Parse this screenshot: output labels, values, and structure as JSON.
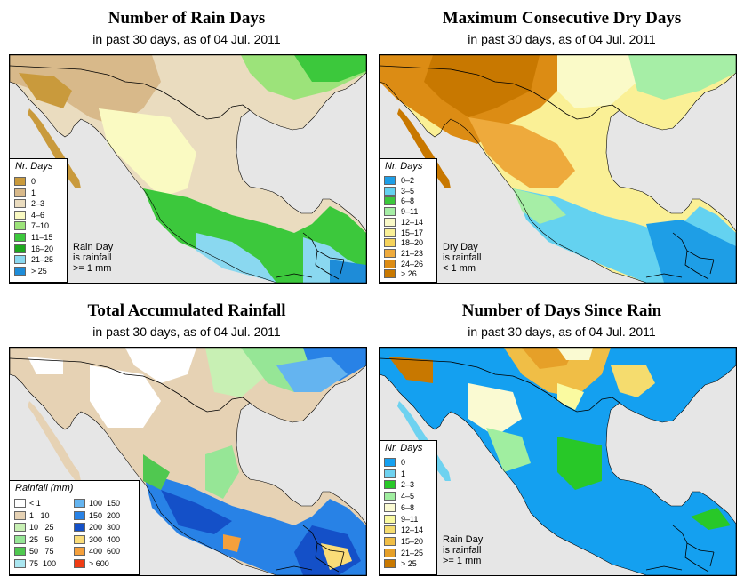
{
  "panels": [
    {
      "id": "rain-days",
      "title": "Number of Rain Days",
      "subtitle": "in past 30 days, as of  04 Jul. 2011",
      "legend": {
        "title": "Nr. Days",
        "items": [
          {
            "label": "0",
            "color": "#c99a3c"
          },
          {
            "label": "1",
            "color": "#d8b98a"
          },
          {
            "label": "2–3",
            "color": "#eadcbf"
          },
          {
            "label": "4–6",
            "color": "#fafac2"
          },
          {
            "label": "7–10",
            "color": "#9ce37a"
          },
          {
            "label": "11–15",
            "color": "#3cc83c"
          },
          {
            "label": "16–20",
            "color": "#1ea81e"
          },
          {
            "label": "21–25",
            "color": "#8ad8f0"
          },
          {
            "label": "> 25",
            "color": "#1e8cd8"
          }
        ]
      },
      "note": [
        "Rain Day",
        "is rainfall",
        ">= 1 mm"
      ]
    },
    {
      "id": "max-dry-days",
      "title": "Maximum Consecutive Dry Days",
      "subtitle": "in past 30 days, as of  04 Jul. 2011",
      "legend": {
        "title": "Nr. Days",
        "items": [
          {
            "label": "0–2",
            "color": "#1e9ee6"
          },
          {
            "label": "3–5",
            "color": "#64d2f0"
          },
          {
            "label": "6–8",
            "color": "#3cc83c"
          },
          {
            "label": "9–11",
            "color": "#a6eea6"
          },
          {
            "label": "12–14",
            "color": "#fafac8"
          },
          {
            "label": "15–17",
            "color": "#faf096"
          },
          {
            "label": "18–20",
            "color": "#f5d25a"
          },
          {
            "label": "21–23",
            "color": "#eeaa3c"
          },
          {
            "label": "24–26",
            "color": "#dc8c14"
          },
          {
            "label": "> 26",
            "color": "#c87800"
          }
        ]
      },
      "note": [
        "Dry Day",
        "is rainfall",
        "< 1 mm"
      ]
    },
    {
      "id": "total-rainfall",
      "title": "Total Accumulated Rainfall",
      "subtitle": "in past 30 days, as of  04 Jul. 2011",
      "legend": {
        "title": "Rainfall (mm)",
        "left_items": [
          {
            "label": "< 1",
            "color": "#ffffff"
          },
          {
            "label": "1   10",
            "color": "#e6d2b4"
          },
          {
            "label": "10   25",
            "color": "#c8f0b4"
          },
          {
            "label": "25   50",
            "color": "#96e696"
          },
          {
            "label": "50   75",
            "color": "#50c850"
          },
          {
            "label": "75  100",
            "color": "#aae6f0"
          }
        ],
        "right_items": [
          {
            "label": "100  150",
            "color": "#64b4f0"
          },
          {
            "label": "150  200",
            "color": "#2882e6"
          },
          {
            "label": "200  300",
            "color": "#1450c8"
          },
          {
            "label": "300  400",
            "color": "#fadc78"
          },
          {
            "label": "400  600",
            "color": "#f5a03c"
          },
          {
            "label": "> 600",
            "color": "#f03c14"
          }
        ]
      }
    },
    {
      "id": "days-since-rain",
      "title": "Number of Days Since Rain",
      "subtitle": "in past 30 days, as of  04 Jul. 2011",
      "legend": {
        "title": "Nr. Days",
        "items": [
          {
            "label": "0",
            "color": "#14a0f0"
          },
          {
            "label": "1",
            "color": "#6ed2f0"
          },
          {
            "label": "2–3",
            "color": "#28c828"
          },
          {
            "label": "4–5",
            "color": "#a0eea0"
          },
          {
            "label": "6–8",
            "color": "#fafad2"
          },
          {
            "label": "9–11",
            "color": "#fafaa0"
          },
          {
            "label": "12–14",
            "color": "#f5dc6e"
          },
          {
            "label": "15–20",
            "color": "#f0be46"
          },
          {
            "label": "21–25",
            "color": "#e6a028"
          },
          {
            "label": "> 25",
            "color": "#c87800"
          }
        ]
      },
      "note": [
        "Rain Day",
        "is rainfall",
        ">= 1 mm"
      ]
    }
  ],
  "colors": {
    "ocean": "#e6e6e6",
    "border": "#000000"
  }
}
